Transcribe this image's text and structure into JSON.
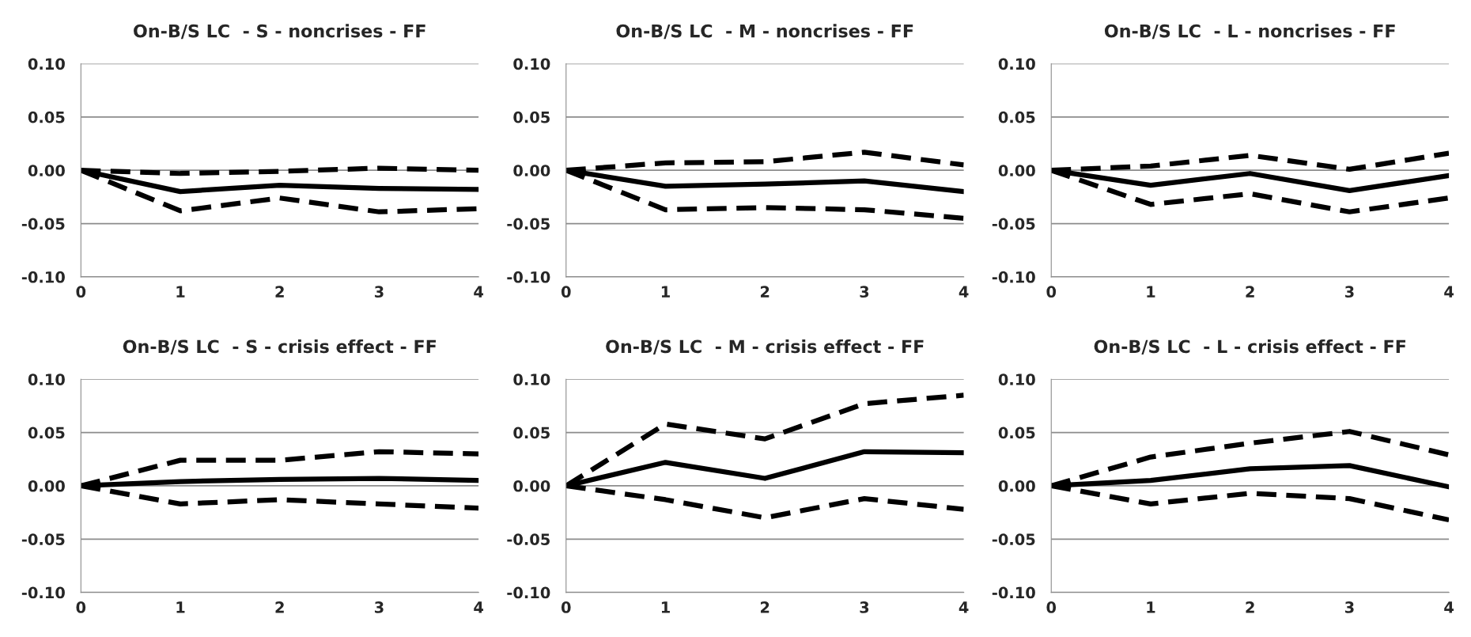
{
  "chart_data": [
    {
      "type": "line",
      "title": "On-B/S LC  - S - noncrises - FF",
      "x": [
        0,
        1,
        2,
        3,
        4
      ],
      "xlim": [
        0,
        4
      ],
      "xticks": [
        0,
        1,
        2,
        3,
        4
      ],
      "ylim": [
        -0.1,
        0.1
      ],
      "yticks": [
        {
          "value": -0.1,
          "label": "-0.10"
        },
        {
          "value": -0.05,
          "label": "-0.05"
        },
        {
          "value": 0,
          "label": "0.00"
        },
        {
          "value": 0.05,
          "label": "0.05"
        },
        {
          "value": 0.1,
          "label": "0.10"
        }
      ],
      "grid": "y",
      "series": [
        {
          "color": "#000000",
          "line_style": "solid",
          "values": [
            0,
            -0.02,
            -0.014,
            -0.017,
            -0.018
          ]
        },
        {
          "color": "#000000",
          "line_style": "dashed",
          "values": [
            0,
            -0.003,
            -0.001,
            0.002,
            0.0
          ]
        },
        {
          "color": "#000000",
          "line_style": "dashed",
          "values": [
            0,
            -0.038,
            -0.026,
            -0.039,
            -0.036
          ]
        }
      ]
    },
    {
      "type": "line",
      "title": "On-B/S LC  - M - noncrises - FF",
      "x": [
        0,
        1,
        2,
        3,
        4
      ],
      "xlim": [
        0,
        4
      ],
      "xticks": [
        0,
        1,
        2,
        3,
        4
      ],
      "ylim": [
        -0.1,
        0.1
      ],
      "yticks": [
        {
          "value": -0.1,
          "label": "-0.10"
        },
        {
          "value": -0.05,
          "label": "-0.05"
        },
        {
          "value": 0,
          "label": "0.00"
        },
        {
          "value": 0.05,
          "label": "0.05"
        },
        {
          "value": 0.1,
          "label": "0.10"
        }
      ],
      "grid": "y",
      "series": [
        {
          "color": "#000000",
          "line_style": "solid",
          "values": [
            0,
            -0.015,
            -0.013,
            -0.01,
            -0.02
          ]
        },
        {
          "color": "#000000",
          "line_style": "dashed",
          "values": [
            0,
            0.007,
            0.008,
            0.017,
            0.005
          ]
        },
        {
          "color": "#000000",
          "line_style": "dashed",
          "values": [
            0,
            -0.037,
            -0.035,
            -0.037,
            -0.045
          ]
        }
      ]
    },
    {
      "type": "line",
      "title": "On-B/S LC  - L - noncrises - FF",
      "x": [
        0,
        1,
        2,
        3,
        4
      ],
      "xlim": [
        0,
        4
      ],
      "xticks": [
        0,
        1,
        2,
        3,
        4
      ],
      "ylim": [
        -0.1,
        0.1
      ],
      "yticks": [
        {
          "value": -0.1,
          "label": "-0.10"
        },
        {
          "value": -0.05,
          "label": "-0.05"
        },
        {
          "value": 0,
          "label": "0.00"
        },
        {
          "value": 0.05,
          "label": "0.05"
        },
        {
          "value": 0.1,
          "label": "0.10"
        }
      ],
      "grid": "y",
      "series": [
        {
          "color": "#000000",
          "line_style": "solid",
          "values": [
            0,
            -0.014,
            -0.003,
            -0.019,
            -0.005
          ]
        },
        {
          "color": "#000000",
          "line_style": "dashed",
          "values": [
            0,
            0.004,
            0.014,
            0.001,
            0.016
          ]
        },
        {
          "color": "#000000",
          "line_style": "dashed",
          "values": [
            0,
            -0.032,
            -0.022,
            -0.039,
            -0.026
          ]
        }
      ]
    },
    {
      "type": "line",
      "title": "On-B/S LC  - S - crisis effect - FF",
      "x": [
        0,
        1,
        2,
        3,
        4
      ],
      "xlim": [
        0,
        4
      ],
      "xticks": [
        0,
        1,
        2,
        3,
        4
      ],
      "ylim": [
        -0.1,
        0.1
      ],
      "yticks": [
        {
          "value": -0.1,
          "label": "-0.10"
        },
        {
          "value": -0.05,
          "label": "-0.05"
        },
        {
          "value": 0,
          "label": "0.00"
        },
        {
          "value": 0.05,
          "label": "0.05"
        },
        {
          "value": 0.1,
          "label": "0.10"
        }
      ],
      "grid": "y",
      "series": [
        {
          "color": "#000000",
          "line_style": "solid",
          "values": [
            0,
            0.004,
            0.006,
            0.007,
            0.005
          ]
        },
        {
          "color": "#000000",
          "line_style": "dashed",
          "values": [
            0,
            0.024,
            0.024,
            0.032,
            0.03
          ]
        },
        {
          "color": "#000000",
          "line_style": "dashed",
          "values": [
            0,
            -0.017,
            -0.013,
            -0.017,
            -0.021
          ]
        }
      ]
    },
    {
      "type": "line",
      "title": "On-B/S LC  - M - crisis effect - FF",
      "x": [
        0,
        1,
        2,
        3,
        4
      ],
      "xlim": [
        0,
        4
      ],
      "xticks": [
        0,
        1,
        2,
        3,
        4
      ],
      "ylim": [
        -0.1,
        0.1
      ],
      "yticks": [
        {
          "value": -0.1,
          "label": "-0.10"
        },
        {
          "value": -0.05,
          "label": "-0.05"
        },
        {
          "value": 0,
          "label": "0.00"
        },
        {
          "value": 0.05,
          "label": "0.05"
        },
        {
          "value": 0.1,
          "label": "0.10"
        }
      ],
      "grid": "y",
      "series": [
        {
          "color": "#000000",
          "line_style": "solid",
          "values": [
            0,
            0.022,
            0.007,
            0.032,
            0.031
          ]
        },
        {
          "color": "#000000",
          "line_style": "dashed",
          "values": [
            0,
            0.058,
            0.044,
            0.077,
            0.085
          ]
        },
        {
          "color": "#000000",
          "line_style": "dashed",
          "values": [
            0,
            -0.013,
            -0.03,
            -0.012,
            -0.022
          ]
        }
      ]
    },
    {
      "type": "line",
      "title": "On-B/S LC  - L - crisis effect - FF",
      "x": [
        0,
        1,
        2,
        3,
        4
      ],
      "xlim": [
        0,
        4
      ],
      "xticks": [
        0,
        1,
        2,
        3,
        4
      ],
      "ylim": [
        -0.1,
        0.1
      ],
      "yticks": [
        {
          "value": -0.1,
          "label": "-0.10"
        },
        {
          "value": -0.05,
          "label": "-0.05"
        },
        {
          "value": 0,
          "label": "0.00"
        },
        {
          "value": 0.05,
          "label": "0.05"
        },
        {
          "value": 0.1,
          "label": "0.10"
        }
      ],
      "grid": "y",
      "series": [
        {
          "color": "#000000",
          "line_style": "solid",
          "values": [
            0,
            0.005,
            0.016,
            0.019,
            -0.001
          ]
        },
        {
          "color": "#000000",
          "line_style": "dashed",
          "values": [
            0,
            0.027,
            0.04,
            0.051,
            0.029
          ]
        },
        {
          "color": "#000000",
          "line_style": "dashed",
          "values": [
            0,
            -0.017,
            -0.007,
            -0.012,
            -0.032
          ]
        }
      ]
    }
  ]
}
